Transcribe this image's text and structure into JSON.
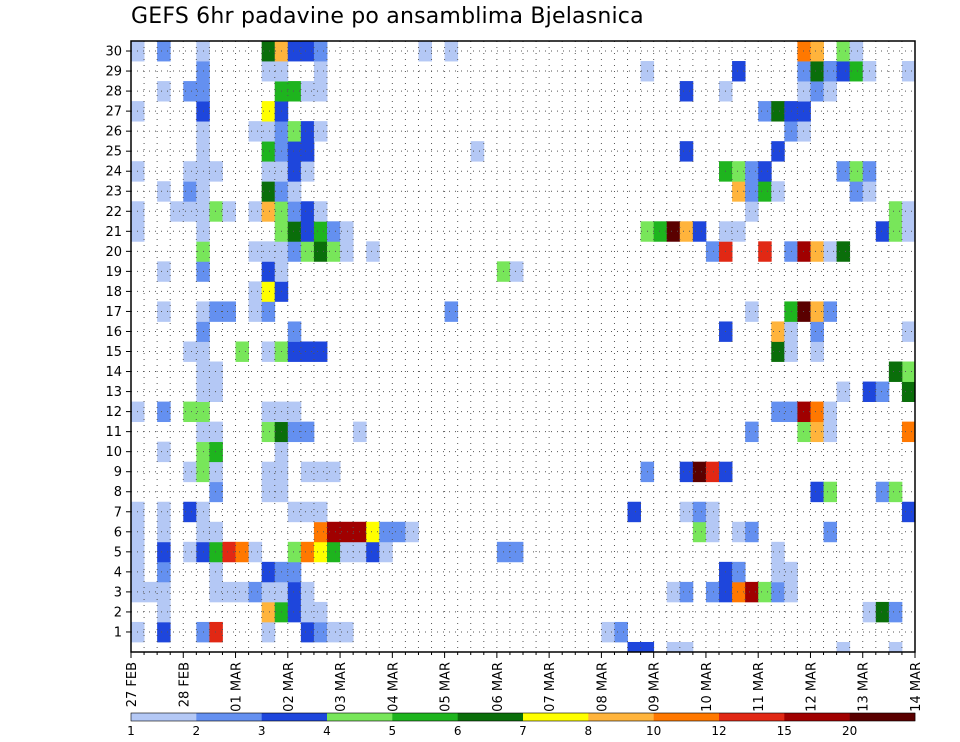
{
  "chart_data": {
    "type": "heatmap",
    "title": "GEFS 6hr padavine po ansamblima Bjelasnica",
    "xlabel": "",
    "ylabel": "",
    "x_ticks": [
      "27 FEB",
      "28 FEB",
      "01 MAR",
      "02 MAR",
      "03 MAR",
      "04 MAR",
      "05 MAR",
      "06 MAR",
      "07 MAR",
      "08 MAR",
      "09 MAR",
      "10 MAR",
      "11 MAR",
      "12 MAR",
      "13 MAR",
      "14 MAR"
    ],
    "y_ticks": [
      1,
      2,
      3,
      4,
      5,
      6,
      7,
      8,
      9,
      10,
      11,
      12,
      13,
      14,
      15,
      16,
      17,
      18,
      19,
      20,
      21,
      22,
      23,
      24,
      25,
      26,
      27,
      28,
      29,
      30
    ],
    "ylim": [
      0,
      30
    ],
    "time_steps": 60,
    "steps_per_day": 4,
    "grid": "dotted",
    "legend": "bottom",
    "levels": [
      1,
      2,
      3,
      4,
      5,
      6,
      7,
      8,
      10,
      12,
      15,
      20
    ],
    "level_labels": [
      "1",
      "2",
      "3",
      "4",
      "5",
      "6",
      "7",
      "8",
      "10",
      "12",
      "15",
      "20"
    ],
    "colors": [
      "#b4c8f5",
      "#6490f0",
      "#1e46dc",
      "#78e65a",
      "#1eb41e",
      "#0a6e0a",
      "#ffff00",
      "#ffb43c",
      "#ff7800",
      "#e12814",
      "#a00000",
      "#5a0000"
    ],
    "cells": [
      [
        1,
        0,
        1
      ],
      [
        1,
        2,
        3
      ],
      [
        1,
        5,
        2
      ],
      [
        1,
        6,
        10
      ],
      [
        1,
        10,
        1
      ],
      [
        1,
        13,
        3
      ],
      [
        1,
        14,
        2
      ],
      [
        1,
        15,
        1
      ],
      [
        1,
        16,
        1
      ],
      [
        1,
        36,
        1
      ],
      [
        1,
        37,
        2
      ],
      [
        2,
        2,
        1
      ],
      [
        2,
        10,
        8
      ],
      [
        2,
        11,
        5
      ],
      [
        2,
        12,
        3
      ],
      [
        2,
        13,
        1
      ],
      [
        2,
        14,
        1
      ],
      [
        2,
        56,
        1
      ],
      [
        2,
        57,
        6
      ],
      [
        2,
        58,
        2
      ],
      [
        3,
        0,
        1
      ],
      [
        3,
        1,
        1
      ],
      [
        3,
        2,
        1
      ],
      [
        3,
        6,
        1
      ],
      [
        3,
        7,
        1
      ],
      [
        3,
        8,
        1
      ],
      [
        3,
        9,
        2
      ],
      [
        3,
        10,
        1
      ],
      [
        3,
        11,
        1
      ],
      [
        3,
        12,
        3
      ],
      [
        3,
        13,
        1
      ],
      [
        3,
        41,
        1
      ],
      [
        3,
        42,
        2
      ],
      [
        3,
        44,
        2
      ],
      [
        3,
        45,
        3
      ],
      [
        3,
        46,
        9
      ],
      [
        3,
        47,
        11
      ],
      [
        3,
        48,
        4
      ],
      [
        3,
        49,
        2
      ],
      [
        3,
        50,
        1
      ],
      [
        4,
        0,
        1
      ],
      [
        4,
        2,
        2
      ],
      [
        4,
        6,
        1
      ],
      [
        4,
        10,
        3
      ],
      [
        4,
        11,
        2
      ],
      [
        4,
        12,
        2
      ],
      [
        4,
        45,
        3
      ],
      [
        4,
        46,
        2
      ],
      [
        4,
        49,
        1
      ],
      [
        4,
        50,
        1
      ],
      [
        5,
        0,
        1
      ],
      [
        5,
        2,
        3
      ],
      [
        5,
        4,
        1
      ],
      [
        5,
        5,
        3
      ],
      [
        5,
        6,
        5
      ],
      [
        5,
        7,
        10
      ],
      [
        5,
        8,
        9
      ],
      [
        5,
        9,
        1
      ],
      [
        5,
        12,
        4
      ],
      [
        5,
        13,
        9
      ],
      [
        5,
        14,
        7
      ],
      [
        5,
        15,
        5
      ],
      [
        5,
        16,
        1
      ],
      [
        5,
        17,
        1
      ],
      [
        5,
        18,
        3
      ],
      [
        5,
        19,
        1
      ],
      [
        5,
        28,
        2
      ],
      [
        5,
        29,
        2
      ],
      [
        5,
        49,
        1
      ],
      [
        6,
        0,
        1
      ],
      [
        6,
        2,
        1
      ],
      [
        6,
        5,
        1
      ],
      [
        6,
        6,
        1
      ],
      [
        6,
        14,
        9
      ],
      [
        6,
        15,
        11
      ],
      [
        6,
        16,
        11
      ],
      [
        6,
        17,
        11
      ],
      [
        6,
        18,
        7
      ],
      [
        6,
        19,
        2
      ],
      [
        6,
        20,
        2
      ],
      [
        6,
        21,
        1
      ],
      [
        6,
        43,
        4
      ],
      [
        6,
        44,
        1
      ],
      [
        6,
        46,
        1
      ],
      [
        6,
        47,
        2
      ],
      [
        6,
        53,
        2
      ],
      [
        7,
        0,
        1
      ],
      [
        7,
        2,
        1
      ],
      [
        7,
        4,
        3
      ],
      [
        7,
        5,
        1
      ],
      [
        7,
        12,
        1
      ],
      [
        7,
        13,
        1
      ],
      [
        7,
        14,
        1
      ],
      [
        7,
        38,
        3
      ],
      [
        7,
        42,
        1
      ],
      [
        7,
        43,
        2
      ],
      [
        7,
        44,
        1
      ],
      [
        7,
        59,
        3
      ],
      [
        8,
        6,
        2
      ],
      [
        8,
        10,
        1
      ],
      [
        8,
        11,
        1
      ],
      [
        8,
        52,
        3
      ],
      [
        8,
        53,
        4
      ],
      [
        8,
        57,
        2
      ],
      [
        8,
        58,
        4
      ],
      [
        9,
        4,
        1
      ],
      [
        9,
        5,
        4
      ],
      [
        9,
        6,
        1
      ],
      [
        9,
        10,
        1
      ],
      [
        9,
        11,
        1
      ],
      [
        9,
        13,
        1
      ],
      [
        9,
        14,
        1
      ],
      [
        9,
        15,
        1
      ],
      [
        9,
        39,
        2
      ],
      [
        9,
        42,
        3
      ],
      [
        9,
        43,
        12
      ],
      [
        9,
        44,
        10
      ],
      [
        9,
        45,
        3
      ],
      [
        10,
        2,
        1
      ],
      [
        10,
        5,
        4
      ],
      [
        10,
        6,
        5
      ],
      [
        10,
        11,
        1
      ],
      [
        11,
        5,
        1
      ],
      [
        11,
        6,
        1
      ],
      [
        11,
        10,
        4
      ],
      [
        11,
        11,
        6
      ],
      [
        11,
        12,
        2
      ],
      [
        11,
        13,
        2
      ],
      [
        11,
        17,
        1
      ],
      [
        11,
        47,
        2
      ],
      [
        11,
        51,
        4
      ],
      [
        11,
        52,
        8
      ],
      [
        11,
        53,
        1
      ],
      [
        11,
        59,
        9
      ],
      [
        12,
        0,
        1
      ],
      [
        12,
        2,
        2
      ],
      [
        12,
        4,
        4
      ],
      [
        12,
        5,
        4
      ],
      [
        12,
        10,
        1
      ],
      [
        12,
        11,
        1
      ],
      [
        12,
        12,
        1
      ],
      [
        12,
        49,
        2
      ],
      [
        12,
        50,
        2
      ],
      [
        12,
        51,
        11
      ],
      [
        12,
        52,
        9
      ],
      [
        12,
        53,
        1
      ],
      [
        13,
        5,
        1
      ],
      [
        13,
        6,
        1
      ],
      [
        13,
        54,
        1
      ],
      [
        13,
        56,
        3
      ],
      [
        13,
        57,
        2
      ],
      [
        13,
        59,
        6
      ],
      [
        14,
        5,
        1
      ],
      [
        14,
        6,
        1
      ],
      [
        14,
        59,
        4
      ],
      [
        14,
        58,
        6
      ],
      [
        15,
        4,
        1
      ],
      [
        15,
        5,
        1
      ],
      [
        15,
        8,
        4
      ],
      [
        15,
        10,
        1
      ],
      [
        15,
        11,
        4
      ],
      [
        15,
        12,
        3
      ],
      [
        15,
        13,
        3
      ],
      [
        15,
        14,
        3
      ],
      [
        15,
        49,
        6
      ],
      [
        15,
        50,
        1
      ],
      [
        15,
        52,
        1
      ],
      [
        16,
        5,
        2
      ],
      [
        16,
        12,
        2
      ],
      [
        16,
        45,
        3
      ],
      [
        16,
        49,
        8
      ],
      [
        16,
        50,
        1
      ],
      [
        16,
        52,
        2
      ],
      [
        16,
        59,
        1
      ],
      [
        17,
        2,
        1
      ],
      [
        17,
        5,
        1
      ],
      [
        17,
        6,
        2
      ],
      [
        17,
        7,
        2
      ],
      [
        17,
        9,
        1
      ],
      [
        17,
        10,
        2
      ],
      [
        17,
        24,
        2
      ],
      [
        17,
        47,
        1
      ],
      [
        17,
        50,
        5
      ],
      [
        17,
        51,
        12
      ],
      [
        17,
        52,
        8
      ],
      [
        17,
        53,
        2
      ],
      [
        18,
        9,
        1
      ],
      [
        18,
        10,
        7
      ],
      [
        18,
        11,
        3
      ],
      [
        19,
        2,
        1
      ],
      [
        19,
        5,
        2
      ],
      [
        19,
        10,
        3
      ],
      [
        19,
        11,
        1
      ],
      [
        19,
        28,
        4
      ],
      [
        19,
        29,
        1
      ],
      [
        20,
        5,
        4
      ],
      [
        20,
        9,
        1
      ],
      [
        20,
        10,
        1
      ],
      [
        20,
        11,
        1
      ],
      [
        20,
        12,
        2
      ],
      [
        20,
        13,
        4
      ],
      [
        20,
        14,
        6
      ],
      [
        20,
        15,
        4
      ],
      [
        20,
        16,
        1
      ],
      [
        20,
        18,
        1
      ],
      [
        20,
        44,
        2
      ],
      [
        20,
        45,
        10
      ],
      [
        20,
        48,
        10
      ],
      [
        20,
        50,
        2
      ],
      [
        20,
        51,
        11
      ],
      [
        20,
        52,
        8
      ],
      [
        20,
        53,
        1
      ],
      [
        20,
        54,
        6
      ],
      [
        21,
        0,
        1
      ],
      [
        21,
        5,
        1
      ],
      [
        21,
        11,
        4
      ],
      [
        21,
        12,
        6
      ],
      [
        21,
        13,
        3
      ],
      [
        21,
        14,
        5
      ],
      [
        21,
        15,
        2
      ],
      [
        21,
        16,
        1
      ],
      [
        21,
        39,
        4
      ],
      [
        21,
        40,
        5
      ],
      [
        21,
        41,
        12
      ],
      [
        21,
        42,
        8
      ],
      [
        21,
        43,
        3
      ],
      [
        21,
        45,
        1
      ],
      [
        21,
        46,
        1
      ],
      [
        21,
        57,
        3
      ],
      [
        21,
        58,
        4
      ],
      [
        21,
        59,
        1
      ],
      [
        22,
        0,
        1
      ],
      [
        22,
        3,
        1
      ],
      [
        22,
        4,
        1
      ],
      [
        22,
        5,
        1
      ],
      [
        22,
        6,
        4
      ],
      [
        22,
        7,
        1
      ],
      [
        22,
        9,
        1
      ],
      [
        22,
        10,
        8
      ],
      [
        22,
        11,
        4
      ],
      [
        22,
        12,
        2
      ],
      [
        22,
        13,
        3
      ],
      [
        22,
        14,
        1
      ],
      [
        22,
        47,
        1
      ],
      [
        22,
        58,
        4
      ],
      [
        22,
        59,
        1
      ],
      [
        23,
        2,
        1
      ],
      [
        23,
        4,
        2
      ],
      [
        23,
        5,
        1
      ],
      [
        23,
        10,
        6
      ],
      [
        23,
        11,
        2
      ],
      [
        23,
        12,
        1
      ],
      [
        23,
        46,
        8
      ],
      [
        23,
        47,
        2
      ],
      [
        23,
        48,
        5
      ],
      [
        23,
        49,
        1
      ],
      [
        23,
        55,
        2
      ],
      [
        23,
        56,
        1
      ],
      [
        24,
        0,
        1
      ],
      [
        24,
        4,
        1
      ],
      [
        24,
        5,
        1
      ],
      [
        24,
        6,
        1
      ],
      [
        24,
        10,
        1
      ],
      [
        24,
        11,
        1
      ],
      [
        24,
        12,
        3
      ],
      [
        24,
        13,
        1
      ],
      [
        24,
        45,
        5
      ],
      [
        24,
        46,
        4
      ],
      [
        24,
        47,
        2
      ],
      [
        24,
        48,
        3
      ],
      [
        24,
        54,
        2
      ],
      [
        24,
        55,
        4
      ],
      [
        24,
        56,
        2
      ],
      [
        25,
        5,
        1
      ],
      [
        25,
        10,
        5
      ],
      [
        25,
        11,
        2
      ],
      [
        25,
        12,
        3
      ],
      [
        25,
        13,
        3
      ],
      [
        25,
        26,
        1
      ],
      [
        25,
        42,
        3
      ],
      [
        25,
        49,
        3
      ],
      [
        26,
        5,
        1
      ],
      [
        26,
        9,
        1
      ],
      [
        26,
        10,
        1
      ],
      [
        26,
        11,
        2
      ],
      [
        26,
        12,
        4
      ],
      [
        26,
        13,
        3
      ],
      [
        26,
        14,
        1
      ],
      [
        26,
        50,
        2
      ],
      [
        26,
        51,
        1
      ],
      [
        27,
        0,
        1
      ],
      [
        27,
        5,
        3
      ],
      [
        27,
        10,
        7
      ],
      [
        27,
        11,
        3
      ],
      [
        27,
        48,
        2
      ],
      [
        27,
        49,
        6
      ],
      [
        27,
        50,
        3
      ],
      [
        27,
        51,
        3
      ],
      [
        28,
        2,
        1
      ],
      [
        28,
        4,
        2
      ],
      [
        28,
        5,
        2
      ],
      [
        28,
        11,
        5
      ],
      [
        28,
        12,
        5
      ],
      [
        28,
        13,
        1
      ],
      [
        28,
        14,
        1
      ],
      [
        28,
        42,
        3
      ],
      [
        28,
        45,
        1
      ],
      [
        28,
        51,
        1
      ],
      [
        28,
        52,
        2
      ],
      [
        28,
        53,
        1
      ],
      [
        29,
        5,
        2
      ],
      [
        29,
        10,
        1
      ],
      [
        29,
        11,
        1
      ],
      [
        29,
        14,
        1
      ],
      [
        29,
        39,
        1
      ],
      [
        29,
        46,
        3
      ],
      [
        29,
        51,
        2
      ],
      [
        29,
        52,
        6
      ],
      [
        29,
        53,
        2
      ],
      [
        29,
        54,
        3
      ],
      [
        29,
        55,
        5
      ],
      [
        29,
        56,
        1
      ],
      [
        29,
        59,
        1
      ],
      [
        30,
        0,
        1
      ],
      [
        30,
        2,
        2
      ],
      [
        30,
        5,
        1
      ],
      [
        30,
        10,
        6
      ],
      [
        30,
        11,
        8
      ],
      [
        30,
        12,
        3
      ],
      [
        30,
        13,
        3
      ],
      [
        30,
        14,
        2
      ],
      [
        30,
        22,
        1
      ],
      [
        30,
        24,
        1
      ],
      [
        30,
        51,
        9
      ],
      [
        30,
        52,
        8
      ],
      [
        30,
        54,
        4
      ],
      [
        30,
        55,
        1
      ],
      [
        0,
        38,
        3
      ],
      [
        0,
        39,
        3
      ],
      [
        0,
        41,
        1
      ],
      [
        0,
        42,
        1
      ],
      [
        0,
        54,
        1
      ],
      [
        0,
        58,
        1
      ]
    ]
  }
}
